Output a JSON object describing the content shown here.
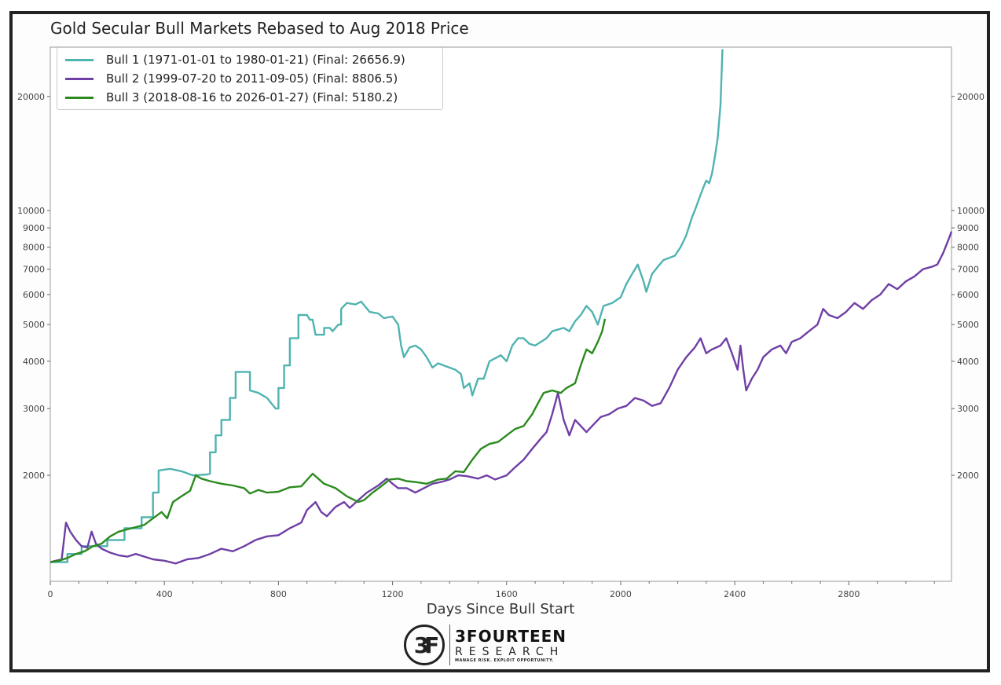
{
  "chart_data": {
    "type": "line",
    "title": "Gold Secular Bull Markets Rebased to Aug 2018 Price",
    "xlabel": "Days Since Bull Start",
    "ylabel": "",
    "yscale": "log",
    "xlim": [
      0,
      3160
    ],
    "ylim": [
      1050,
      27000
    ],
    "x_ticks": [
      0,
      400,
      800,
      1200,
      1600,
      2000,
      2400,
      2800
    ],
    "y_ticks": [
      2000,
      3000,
      4000,
      5000,
      6000,
      7000,
      8000,
      9000,
      10000,
      20000
    ],
    "legend_position": "top-left",
    "series": [
      {
        "name": "Bull 1 (1971-01-01 to 1980-01-21) (Final: 26656.9)",
        "color": "#4fb3b0",
        "points": [
          [
            0,
            1180
          ],
          [
            60,
            1180
          ],
          [
            60,
            1240
          ],
          [
            110,
            1240
          ],
          [
            110,
            1300
          ],
          [
            200,
            1300
          ],
          [
            200,
            1350
          ],
          [
            260,
            1350
          ],
          [
            260,
            1450
          ],
          [
            320,
            1450
          ],
          [
            320,
            1550
          ],
          [
            360,
            1550
          ],
          [
            360,
            1800
          ],
          [
            380,
            1800
          ],
          [
            380,
            2060
          ],
          [
            420,
            2080
          ],
          [
            460,
            2050
          ],
          [
            500,
            2000
          ],
          [
            550,
            2010
          ],
          [
            560,
            2020
          ],
          [
            560,
            2300
          ],
          [
            580,
            2300
          ],
          [
            580,
            2550
          ],
          [
            600,
            2550
          ],
          [
            600,
            2800
          ],
          [
            630,
            2800
          ],
          [
            630,
            3200
          ],
          [
            650,
            3200
          ],
          [
            650,
            3750
          ],
          [
            700,
            3750
          ],
          [
            700,
            3350
          ],
          [
            730,
            3300
          ],
          [
            760,
            3200
          ],
          [
            790,
            3000
          ],
          [
            800,
            3000
          ],
          [
            800,
            3400
          ],
          [
            820,
            3400
          ],
          [
            820,
            3900
          ],
          [
            840,
            3900
          ],
          [
            840,
            4600
          ],
          [
            870,
            4600
          ],
          [
            870,
            5300
          ],
          [
            900,
            5300
          ],
          [
            910,
            5150
          ],
          [
            920,
            5150
          ],
          [
            930,
            4700
          ],
          [
            960,
            4700
          ],
          [
            960,
            4900
          ],
          [
            980,
            4900
          ],
          [
            990,
            4800
          ],
          [
            1010,
            5000
          ],
          [
            1020,
            5000
          ],
          [
            1020,
            5500
          ],
          [
            1040,
            5700
          ],
          [
            1070,
            5650
          ],
          [
            1090,
            5750
          ],
          [
            1120,
            5400
          ],
          [
            1150,
            5350
          ],
          [
            1170,
            5200
          ],
          [
            1200,
            5250
          ],
          [
            1220,
            5000
          ],
          [
            1230,
            4400
          ],
          [
            1240,
            4100
          ],
          [
            1260,
            4350
          ],
          [
            1280,
            4400
          ],
          [
            1300,
            4300
          ],
          [
            1320,
            4100
          ],
          [
            1340,
            3850
          ],
          [
            1360,
            3950
          ],
          [
            1380,
            3900
          ],
          [
            1420,
            3800
          ],
          [
            1440,
            3700
          ],
          [
            1450,
            3400
          ],
          [
            1470,
            3500
          ],
          [
            1480,
            3250
          ],
          [
            1500,
            3600
          ],
          [
            1520,
            3600
          ],
          [
            1540,
            4000
          ],
          [
            1580,
            4150
          ],
          [
            1600,
            4000
          ],
          [
            1620,
            4400
          ],
          [
            1640,
            4600
          ],
          [
            1660,
            4600
          ],
          [
            1680,
            4450
          ],
          [
            1700,
            4400
          ],
          [
            1740,
            4600
          ],
          [
            1760,
            4800
          ],
          [
            1800,
            4900
          ],
          [
            1820,
            4800
          ],
          [
            1840,
            5100
          ],
          [
            1860,
            5300
          ],
          [
            1880,
            5600
          ],
          [
            1900,
            5400
          ],
          [
            1920,
            5000
          ],
          [
            1940,
            5600
          ],
          [
            1970,
            5700
          ],
          [
            2000,
            5900
          ],
          [
            2020,
            6400
          ],
          [
            2040,
            6800
          ],
          [
            2060,
            7200
          ],
          [
            2080,
            6500
          ],
          [
            2090,
            6100
          ],
          [
            2110,
            6800
          ],
          [
            2130,
            7100
          ],
          [
            2150,
            7400
          ],
          [
            2170,
            7500
          ],
          [
            2190,
            7600
          ],
          [
            2210,
            8000
          ],
          [
            2230,
            8600
          ],
          [
            2250,
            9600
          ],
          [
            2260,
            10000
          ],
          [
            2280,
            11000
          ],
          [
            2290,
            11500
          ],
          [
            2300,
            12000
          ],
          [
            2310,
            11800
          ],
          [
            2320,
            12500
          ],
          [
            2330,
            13800
          ],
          [
            2340,
            15500
          ],
          [
            2350,
            19000
          ],
          [
            2357,
            26657
          ]
        ]
      },
      {
        "name": "Bull 2 (1999-07-20 to 2011-09-05) (Final: 8806.5)",
        "color": "#6f3fa5",
        "points": [
          [
            0,
            1180
          ],
          [
            20,
            1190
          ],
          [
            40,
            1200
          ],
          [
            55,
            1500
          ],
          [
            70,
            1420
          ],
          [
            90,
            1350
          ],
          [
            110,
            1300
          ],
          [
            130,
            1290
          ],
          [
            145,
            1420
          ],
          [
            160,
            1320
          ],
          [
            180,
            1280
          ],
          [
            210,
            1250
          ],
          [
            240,
            1230
          ],
          [
            270,
            1220
          ],
          [
            300,
            1240
          ],
          [
            330,
            1220
          ],
          [
            360,
            1200
          ],
          [
            400,
            1190
          ],
          [
            440,
            1170
          ],
          [
            480,
            1200
          ],
          [
            520,
            1210
          ],
          [
            560,
            1240
          ],
          [
            600,
            1280
          ],
          [
            640,
            1260
          ],
          [
            680,
            1300
          ],
          [
            720,
            1350
          ],
          [
            760,
            1380
          ],
          [
            800,
            1390
          ],
          [
            840,
            1450
          ],
          [
            880,
            1500
          ],
          [
            900,
            1620
          ],
          [
            930,
            1700
          ],
          [
            950,
            1600
          ],
          [
            970,
            1560
          ],
          [
            1000,
            1650
          ],
          [
            1030,
            1700
          ],
          [
            1050,
            1640
          ],
          [
            1080,
            1720
          ],
          [
            1110,
            1800
          ],
          [
            1150,
            1880
          ],
          [
            1180,
            1960
          ],
          [
            1200,
            1900
          ],
          [
            1220,
            1850
          ],
          [
            1250,
            1850
          ],
          [
            1280,
            1800
          ],
          [
            1310,
            1850
          ],
          [
            1340,
            1900
          ],
          [
            1370,
            1920
          ],
          [
            1400,
            1950
          ],
          [
            1430,
            2000
          ],
          [
            1460,
            1990
          ],
          [
            1500,
            1960
          ],
          [
            1530,
            2000
          ],
          [
            1560,
            1950
          ],
          [
            1600,
            2000
          ],
          [
            1630,
            2100
          ],
          [
            1660,
            2200
          ],
          [
            1690,
            2350
          ],
          [
            1720,
            2500
          ],
          [
            1740,
            2600
          ],
          [
            1760,
            2900
          ],
          [
            1780,
            3300
          ],
          [
            1800,
            2800
          ],
          [
            1820,
            2550
          ],
          [
            1840,
            2800
          ],
          [
            1860,
            2700
          ],
          [
            1880,
            2600
          ],
          [
            1900,
            2700
          ],
          [
            1930,
            2850
          ],
          [
            1960,
            2900
          ],
          [
            1990,
            3000
          ],
          [
            2020,
            3050
          ],
          [
            2050,
            3200
          ],
          [
            2080,
            3150
          ],
          [
            2110,
            3050
          ],
          [
            2140,
            3100
          ],
          [
            2170,
            3400
          ],
          [
            2200,
            3800
          ],
          [
            2230,
            4100
          ],
          [
            2260,
            4350
          ],
          [
            2280,
            4600
          ],
          [
            2300,
            4200
          ],
          [
            2320,
            4300
          ],
          [
            2350,
            4400
          ],
          [
            2370,
            4600
          ],
          [
            2390,
            4200
          ],
          [
            2410,
            3800
          ],
          [
            2420,
            4400
          ],
          [
            2430,
            3800
          ],
          [
            2440,
            3350
          ],
          [
            2460,
            3600
          ],
          [
            2480,
            3800
          ],
          [
            2500,
            4100
          ],
          [
            2530,
            4300
          ],
          [
            2560,
            4400
          ],
          [
            2580,
            4200
          ],
          [
            2600,
            4500
          ],
          [
            2630,
            4600
          ],
          [
            2660,
            4800
          ],
          [
            2690,
            5000
          ],
          [
            2710,
            5500
          ],
          [
            2730,
            5300
          ],
          [
            2760,
            5200
          ],
          [
            2790,
            5400
          ],
          [
            2820,
            5700
          ],
          [
            2850,
            5500
          ],
          [
            2880,
            5800
          ],
          [
            2910,
            6000
          ],
          [
            2940,
            6400
          ],
          [
            2970,
            6200
          ],
          [
            3000,
            6500
          ],
          [
            3030,
            6700
          ],
          [
            3060,
            7000
          ],
          [
            3090,
            7100
          ],
          [
            3110,
            7200
          ],
          [
            3130,
            7700
          ],
          [
            3150,
            8400
          ],
          [
            3160,
            8807
          ]
        ]
      },
      {
        "name": "Bull 3 (2018-08-16 to 2026-01-27) (Final: 5180.2)",
        "color": "#2b8a1e",
        "points": [
          [
            0,
            1180
          ],
          [
            30,
            1190
          ],
          [
            60,
            1210
          ],
          [
            90,
            1240
          ],
          [
            120,
            1260
          ],
          [
            150,
            1300
          ],
          [
            180,
            1320
          ],
          [
            210,
            1380
          ],
          [
            240,
            1420
          ],
          [
            270,
            1440
          ],
          [
            300,
            1460
          ],
          [
            330,
            1480
          ],
          [
            360,
            1540
          ],
          [
            390,
            1600
          ],
          [
            410,
            1540
          ],
          [
            430,
            1700
          ],
          [
            460,
            1760
          ],
          [
            490,
            1820
          ],
          [
            510,
            2000
          ],
          [
            530,
            1960
          ],
          [
            560,
            1930
          ],
          [
            600,
            1900
          ],
          [
            640,
            1880
          ],
          [
            680,
            1850
          ],
          [
            700,
            1790
          ],
          [
            730,
            1830
          ],
          [
            760,
            1800
          ],
          [
            800,
            1810
          ],
          [
            840,
            1860
          ],
          [
            880,
            1870
          ],
          [
            920,
            2020
          ],
          [
            960,
            1900
          ],
          [
            1000,
            1850
          ],
          [
            1040,
            1760
          ],
          [
            1080,
            1700
          ],
          [
            1100,
            1720
          ],
          [
            1130,
            1800
          ],
          [
            1160,
            1870
          ],
          [
            1190,
            1950
          ],
          [
            1220,
            1960
          ],
          [
            1250,
            1930
          ],
          [
            1280,
            1920
          ],
          [
            1320,
            1900
          ],
          [
            1360,
            1950
          ],
          [
            1390,
            1960
          ],
          [
            1420,
            2050
          ],
          [
            1450,
            2040
          ],
          [
            1480,
            2200
          ],
          [
            1510,
            2350
          ],
          [
            1540,
            2420
          ],
          [
            1570,
            2450
          ],
          [
            1600,
            2550
          ],
          [
            1630,
            2650
          ],
          [
            1660,
            2700
          ],
          [
            1690,
            2900
          ],
          [
            1710,
            3100
          ],
          [
            1730,
            3300
          ],
          [
            1760,
            3350
          ],
          [
            1790,
            3300
          ],
          [
            1810,
            3400
          ],
          [
            1840,
            3500
          ],
          [
            1860,
            3900
          ],
          [
            1880,
            4300
          ],
          [
            1900,
            4200
          ],
          [
            1920,
            4500
          ],
          [
            1935,
            4800
          ],
          [
            1945,
            5180
          ]
        ]
      }
    ]
  },
  "brand": {
    "name": "3FOURTEEN",
    "sub": "RESEARCH",
    "tagline": "MANAGE RISK. EXPLOIT OPPORTUNITY.",
    "monogram": "3F"
  }
}
